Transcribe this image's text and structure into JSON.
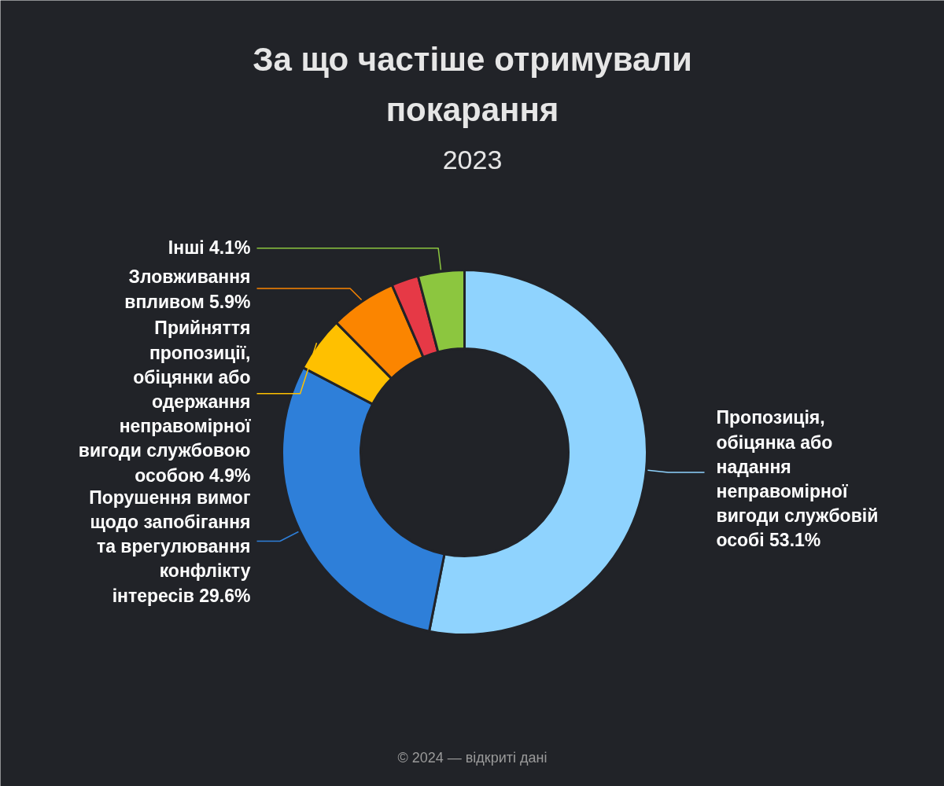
{
  "chart_data": {
    "type": "donut",
    "title": "За що частіше отримували покарання",
    "subtitle": "2023",
    "categories": [
      "Пропозиція, обіцянка або надання неправомірної вигоди службовій особі",
      "Порушення вимог щодо запобігання та врегулювання конфлікту інтересів",
      "Прийняття пропозиції, обіцянки або одержання неправомірної вигоди службовою особою",
      "Зловживання впливом",
      null,
      "Інші"
    ],
    "values": [
      53.1,
      29.6,
      4.9,
      5.9,
      2.4,
      4.1
    ],
    "colors": [
      "#8fd3fe",
      "#2e7fd9",
      "#ffc000",
      "#fb8500",
      "#e63946",
      "#8cc63f"
    ],
    "value_labels": [
      "53.1%",
      "29.6%",
      "4.9%",
      "5.9%",
      null,
      "4.1%"
    ],
    "annotations": [
      "© 2024 — відкриті дані"
    ]
  }
}
